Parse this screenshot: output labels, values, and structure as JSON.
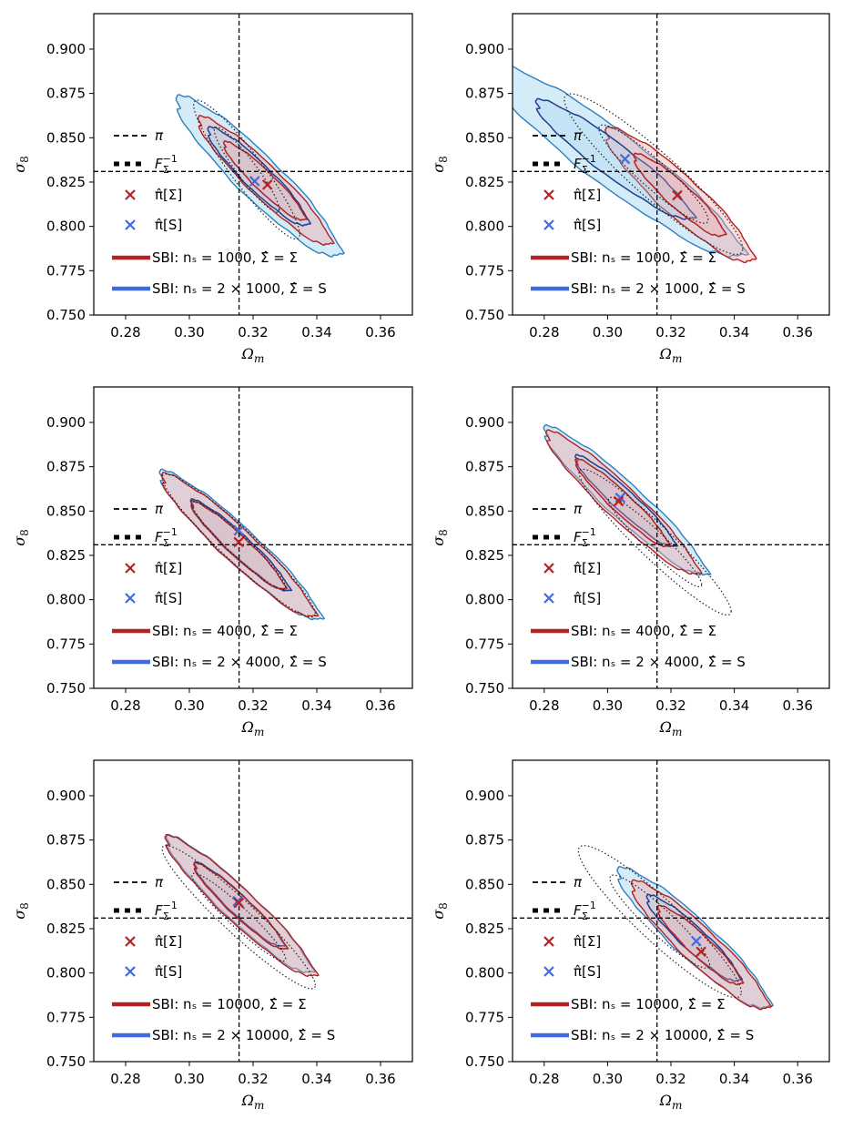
{
  "colors": {
    "red": "#b22222",
    "red_fill": "#f4a6a6",
    "blue_line": "#2f7fc1",
    "blue_fill": "#9fd3f0",
    "dark_blue": "#1f3f8f",
    "cross_blue": "#4169e1"
  },
  "axes_common": {
    "xlabel": "Ωm",
    "ylabel": "σ8",
    "xlim": [
      0.27,
      0.37
    ],
    "ylim": [
      0.75,
      0.92
    ],
    "xticks": [
      "0.28",
      "0.30",
      "0.32",
      "0.34",
      "0.36"
    ],
    "yticks": [
      "0.750",
      "0.775",
      "0.800",
      "0.825",
      "0.850",
      "0.875",
      "0.900"
    ],
    "fiducial": {
      "omega_m": 0.3156,
      "sigma_8": 0.831
    }
  },
  "legend_common": {
    "pi_label": "π",
    "fisher_label": "F",
    "fisher_sub": "Σ",
    "fisher_sup": "−1",
    "map_sigma_label": "π̂[Σ]",
    "map_s_label": "π̂[S]"
  },
  "chart_data": [
    {
      "type": "scatter",
      "id": "row1-left",
      "sbi_red_label": "SBI: nₛ = 1000, Σ̂ = Σ",
      "sbi_blue_label": "SBI: nₛ = 2 × 1000, Σ̂ = S",
      "map_sigma": [
        0.3245,
        0.8235
      ],
      "map_s": [
        0.3205,
        0.8255
      ],
      "fisher": {
        "center": [
          0.318,
          0.832
        ],
        "sx": 0.0068,
        "sy": 0.016,
        "rho": -0.93
      },
      "blue": {
        "center": [
          0.3215,
          0.828
        ],
        "sx": 0.0105,
        "sy": 0.0185,
        "rho": -0.93
      },
      "red": {
        "center": [
          0.3235,
          0.8255
        ],
        "sx": 0.0085,
        "sy": 0.0148,
        "rho": -0.94
      }
    },
    {
      "type": "scatter",
      "id": "row1-right",
      "sbi_red_label": "SBI: nₛ = 1000, Σ̂ = Σ",
      "sbi_blue_label": "SBI: nₛ = 2 × 1000, Σ̂ = S",
      "map_sigma": [
        0.322,
        0.8175
      ],
      "map_s": [
        0.3055,
        0.838
      ],
      "fisher": {
        "center": [
          0.3145,
          0.8295
        ],
        "sx": 0.0115,
        "sy": 0.0185,
        "rho": -0.93
      },
      "blue": {
        "center": [
          0.302,
          0.8375
        ],
        "sx": 0.0165,
        "sy": 0.0225,
        "rho": -0.94
      },
      "red": {
        "center": [
          0.3225,
          0.8175
        ],
        "sx": 0.0095,
        "sy": 0.0155,
        "rho": -0.92
      }
    },
    {
      "type": "scatter",
      "id": "row2-left",
      "sbi_red_label": "SBI: nₛ = 4000, Σ̂ = Σ",
      "sbi_blue_label": "SBI: nₛ = 2 × 4000, Σ̂ = S",
      "map_sigma": [
        0.3155,
        0.8325
      ],
      "map_s": [
        0.3155,
        0.839
      ],
      "fisher": {
        "center": [
          0.3155,
          0.8305
        ],
        "sx": 0.0098,
        "sy": 0.0165,
        "rho": -0.95
      },
      "blue": {
        "center": [
          0.3158,
          0.8305
        ],
        "sx": 0.0103,
        "sy": 0.0172,
        "rho": -0.95
      },
      "red": {
        "center": [
          0.3152,
          0.8305
        ],
        "sx": 0.0098,
        "sy": 0.0165,
        "rho": -0.95
      }
    },
    {
      "type": "scatter",
      "id": "row2-right",
      "sbi_red_label": "SBI: nₛ = 4000, Σ̂ = Σ",
      "sbi_blue_label": "SBI: nₛ = 2 × 4000, Σ̂ = S",
      "map_sigma": [
        0.3035,
        0.8555
      ],
      "map_s": [
        0.304,
        0.8575
      ],
      "fisher": {
        "center": [
          0.315,
          0.8325
        ],
        "sx": 0.0098,
        "sy": 0.0168,
        "rho": -0.95
      },
      "blue": {
        "center": [
          0.3055,
          0.8555
        ],
        "sx": 0.0105,
        "sy": 0.0172,
        "rho": -0.95
      },
      "red": {
        "center": [
          0.3045,
          0.8545
        ],
        "sx": 0.0098,
        "sy": 0.0165,
        "rho": -0.95
      }
    },
    {
      "type": "scatter",
      "id": "row3-left",
      "sbi_red_label": "SBI: nₛ = 10000, Σ̂ = Σ",
      "sbi_blue_label": "SBI: nₛ = 2 × 10000, Σ̂ = S",
      "map_sigma": [
        0.3155,
        0.8395
      ],
      "map_s": [
        0.3152,
        0.8405
      ],
      "fisher": {
        "center": [
          0.3155,
          0.8315
        ],
        "sx": 0.0098,
        "sy": 0.0165,
        "rho": -0.95
      },
      "blue": {
        "center": [
          0.3155,
          0.8385
        ],
        "sx": 0.0093,
        "sy": 0.0158,
        "rho": -0.95
      },
      "red": {
        "center": [
          0.3158,
          0.8375
        ],
        "sx": 0.0096,
        "sy": 0.0162,
        "rho": -0.95
      }
    },
    {
      "type": "scatter",
      "id": "row3-right",
      "sbi_red_label": "SBI: nₛ = 10000, Σ̂ = Σ",
      "sbi_blue_label": "SBI: nₛ = 2 × 10000, Σ̂ = S",
      "map_sigma": [
        0.3295,
        0.812
      ],
      "map_s": [
        0.328,
        0.818
      ],
      "fisher": {
        "center": [
          0.3165,
          0.829
        ],
        "sx": 0.0105,
        "sy": 0.0175,
        "rho": -0.93
      },
      "blue": {
        "center": [
          0.327,
          0.8195
        ],
        "sx": 0.0098,
        "sy": 0.0162,
        "rho": -0.93
      },
      "red": {
        "center": [
          0.329,
          0.8155
        ],
        "sx": 0.0088,
        "sy": 0.0148,
        "rho": -0.93
      }
    }
  ]
}
